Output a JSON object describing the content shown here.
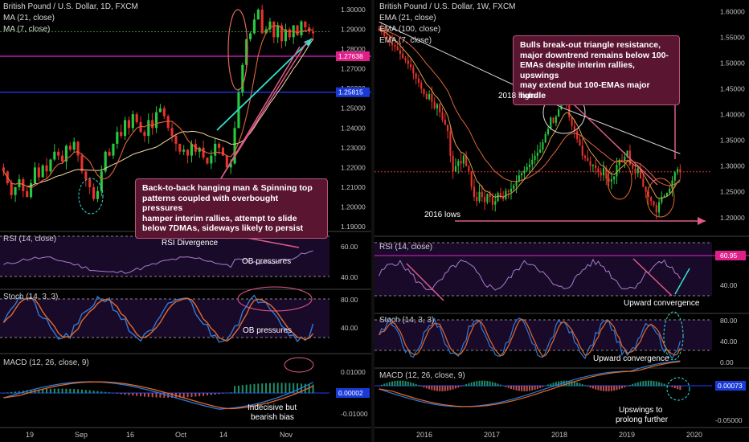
{
  "colors": {
    "background": "#000000",
    "up_candle": "#27c93f",
    "down_candle": "#e8322c",
    "ma21": "#f0d9a0",
    "ma7": "#e0653c",
    "ema100": "#d8d8d8",
    "magenta_line": "#e020d0",
    "blue_line": "#2040ff",
    "cyan_arrow": "#30e0d0",
    "pink_arrow": "#e05a8a",
    "panel_fill": "#1a0a2a",
    "rsi_line": "#a67ec8",
    "stoch_k": "#2e7ad8",
    "stoch_d": "#e06a2a",
    "macd_line": "#2e7ad8",
    "signal_line": "#e06a2a",
    "price_tag_pink": "#e0208a",
    "price_tag_blue": "#1a3ad8"
  },
  "left": {
    "title": "British Pound / U.S. Dollar, 1D, FXCM",
    "legend_ma21": "MA (21, close)",
    "legend_ma7": "MA (7, close)",
    "callout": {
      "line1": "Back-to-back hanging man & Spinning top",
      "line2": "patterns coupled with overbought pressures",
      "line3": "hamper interim rallies, attempt to slide",
      "line4": "below 7DMAs, sideways likely to persist"
    },
    "price_tag_1": "1.27638",
    "price_tag_2": "1.25815",
    "rsi_label": "RSI (14, close)",
    "rsi_note_divergence": "RSI Divergence",
    "rsi_note_ob": "OB pressures",
    "stoch_label": "Stoch (14, 3, 3)",
    "stoch_note_ob": "OB pressures",
    "macd_label": "MACD (12, 26, close, 9)",
    "macd_note_line1": "Indecisive but",
    "macd_note_line2": "bearish bias",
    "macd_tag": "0.00002",
    "x_ticks": [
      "19",
      "Sep",
      "16",
      "Oct",
      "14",
      "Nov"
    ],
    "price_ticks": [
      "1.30000",
      "1.29000",
      "1.28000",
      "1.27000",
      "1.26000",
      "1.25000",
      "1.24000",
      "1.23000",
      "1.22000",
      "1.21000",
      "1.20000",
      "1.19000"
    ],
    "rsi_ticks": [
      "60.00",
      "40.00"
    ],
    "stoch_ticks": [
      "80.00",
      "40.00"
    ],
    "macd_ticks": [
      "0.01000",
      "-0.01000"
    ]
  },
  "right": {
    "title": "British Pound / U.S. Dollar, 1W, FXCM",
    "legend_ema21": "EMA (21, close)",
    "legend_ema100": "EMA (100, close)",
    "legend_ema7": "EMA (7, close)",
    "callout": {
      "line1": "Bulls break-out triangle resistance,",
      "line2": "major downtrend remains below 100-",
      "line3": "EMAs despite interim rallies, upswings",
      "line4": "may extend but 100-EMAs major hurdle"
    },
    "note_2018_highs": "2018 highs",
    "note_2016_lows": "2016 lows",
    "rsi_label": "RSI (14, close)",
    "rsi_tag": "60.95",
    "rsi_note": "Upward convergence",
    "stoch_label": "Stoch (14, 3, 3)",
    "stoch_note": "Upward convergence",
    "macd_label": "MACD (12, 26, close, 9)",
    "macd_tag": "0.00073",
    "macd_note_line1": "Upswings to",
    "macd_note_line2": "prolong further",
    "x_ticks": [
      "2016",
      "2017",
      "2018",
      "2019",
      "2020"
    ],
    "price_ticks": [
      "1.60000",
      "1.55000",
      "1.50000",
      "1.45000",
      "1.40000",
      "1.35000",
      "1.30000",
      "1.25000",
      "1.20000"
    ],
    "rsi_ticks": [
      "40.00"
    ],
    "stoch_ticks": [
      "80.00",
      "40.00",
      "0.00"
    ],
    "macd_ticks": [
      "-0.05000"
    ]
  },
  "chart_data": [
    {
      "type": "candlestick",
      "title": "British Pound / U.S. Dollar, 1D, FXCM",
      "x_ticks": [
        "19",
        "Sep",
        "16",
        "Oct",
        "14",
        "Nov"
      ],
      "ylim": [
        1.19,
        1.3
      ],
      "series": [
        {
          "name": "MA (21, close)"
        },
        {
          "name": "MA (7, close)"
        }
      ],
      "levels": [
        1.27638,
        1.25815
      ],
      "close": [
        1.218,
        1.212,
        1.206,
        1.21,
        1.214,
        1.208,
        1.205,
        1.212,
        1.22,
        1.215,
        1.221,
        1.218,
        1.224,
        1.228,
        1.226,
        1.223,
        1.231,
        1.229,
        1.233,
        1.226,
        1.218,
        1.214,
        1.21,
        1.204,
        1.208,
        1.218,
        1.228,
        1.226,
        1.232,
        1.238,
        1.236,
        1.244,
        1.24,
        1.247,
        1.243,
        1.238,
        1.236,
        1.244,
        1.24,
        1.248,
        1.25,
        1.246,
        1.24,
        1.236,
        1.232,
        1.228,
        1.229,
        1.226,
        1.232,
        1.228,
        1.23,
        1.225,
        1.222,
        1.226,
        1.232,
        1.23,
        1.226,
        1.22,
        1.222,
        1.24,
        1.258,
        1.272,
        1.285,
        1.288,
        1.295,
        1.3,
        1.288,
        1.29,
        1.294,
        1.286,
        1.292,
        1.284,
        1.29,
        1.286,
        1.292,
        1.287,
        1.294,
        1.291,
        1.289,
        1.288
      ]
    },
    {
      "type": "candlestick",
      "title": "British Pound / U.S. Dollar, 1W, FXCM",
      "x_ticks": [
        "2016",
        "2017",
        "2018",
        "2019",
        "2020"
      ],
      "ylim": [
        1.17,
        1.61
      ],
      "series": [
        {
          "name": "EMA (21, close)"
        },
        {
          "name": "EMA (100, close)"
        },
        {
          "name": "EMA (7, close)"
        }
      ],
      "close": [
        1.565,
        1.56,
        1.552,
        1.548,
        1.54,
        1.535,
        1.532,
        1.525,
        1.518,
        1.51,
        1.505,
        1.498,
        1.492,
        1.48,
        1.47,
        1.462,
        1.45,
        1.44,
        1.43,
        1.44,
        1.425,
        1.412,
        1.42,
        1.405,
        1.39,
        1.38,
        1.368,
        1.32,
        1.29,
        1.3,
        1.31,
        1.305,
        1.32,
        1.3,
        1.29,
        1.26,
        1.24,
        1.232,
        1.25,
        1.24,
        1.23,
        1.246,
        1.24,
        1.225,
        1.232,
        1.248,
        1.24,
        1.236,
        1.252,
        1.25,
        1.256,
        1.262,
        1.27,
        1.282,
        1.286,
        1.292,
        1.298,
        1.303,
        1.312,
        1.32,
        1.326,
        1.332,
        1.346,
        1.362,
        1.372,
        1.394,
        1.384,
        1.396,
        1.41,
        1.42,
        1.428,
        1.418,
        1.395,
        1.378,
        1.368,
        1.352,
        1.34,
        1.32,
        1.316,
        1.31,
        1.3,
        1.302,
        1.296,
        1.288,
        1.282,
        1.296,
        1.276,
        1.27,
        1.274,
        1.28,
        1.302,
        1.312,
        1.31,
        1.318,
        1.33,
        1.302,
        1.295,
        1.286,
        1.296,
        1.276,
        1.26,
        1.25,
        1.24,
        1.232,
        1.224,
        1.21,
        1.23,
        1.24,
        1.242,
        1.248,
        1.256,
        1.272,
        1.288,
        1.294,
        1.288
      ]
    }
  ]
}
